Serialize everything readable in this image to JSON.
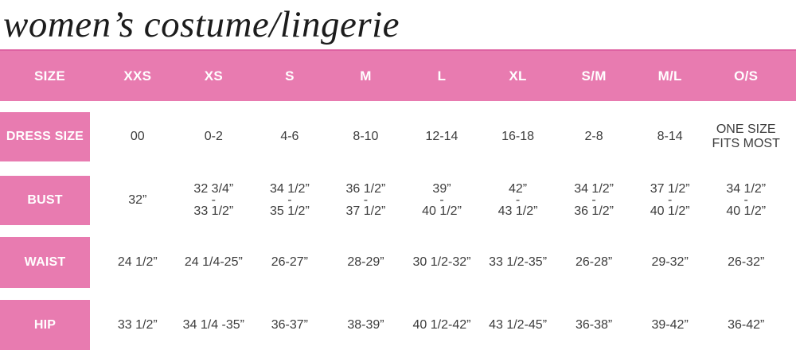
{
  "title": "women’s costume/lingerie",
  "colors": {
    "header_pink": "#e87bb0",
    "header_edge_pink": "#de62a2",
    "label_pink": "#e87bb0",
    "text_dark": "#3c3c3c",
    "text_white": "#ffffff"
  },
  "chart_data": {
    "type": "table",
    "title": "women’s costume/lingerie",
    "columns": [
      "SIZE",
      "XXS",
      "XS",
      "S",
      "M",
      "L",
      "XL",
      "S/M",
      "M/L",
      "O/S"
    ],
    "rows": [
      {
        "label": "DRESS SIZE",
        "values": [
          "00",
          "0-2",
          "4-6",
          "8-10",
          "12-14",
          "16-18",
          "2-8",
          "8-14",
          "ONE SIZE\nFITS MOST"
        ]
      },
      {
        "label": "BUST",
        "values": [
          "32”",
          "32 3/4”\n-\n33 1/2”",
          "34 1/2”\n-\n35 1/2”",
          "36 1/2”\n-\n37 1/2”",
          "39”\n-\n40 1/2”",
          "42”\n-\n43 1/2”",
          "34 1/2”\n-\n36 1/2”",
          "37 1/2”\n-\n40 1/2”",
          "34 1/2”\n-\n40 1/2”"
        ]
      },
      {
        "label": "WAIST",
        "values": [
          "24 1/2”",
          "24 1/4-25”",
          "26-27”",
          "28-29”",
          "30 1/2-32”",
          "33 1/2-35”",
          "26-28”",
          "29-32”",
          "26-32”"
        ]
      },
      {
        "label": "HIP",
        "values": [
          "33 1/2”",
          "34 1/4 -35”",
          "36-37”",
          "38-39”",
          "40 1/2-42”",
          "43 1/2-45”",
          "36-38”",
          "39-42”",
          "36-42”"
        ]
      }
    ]
  }
}
